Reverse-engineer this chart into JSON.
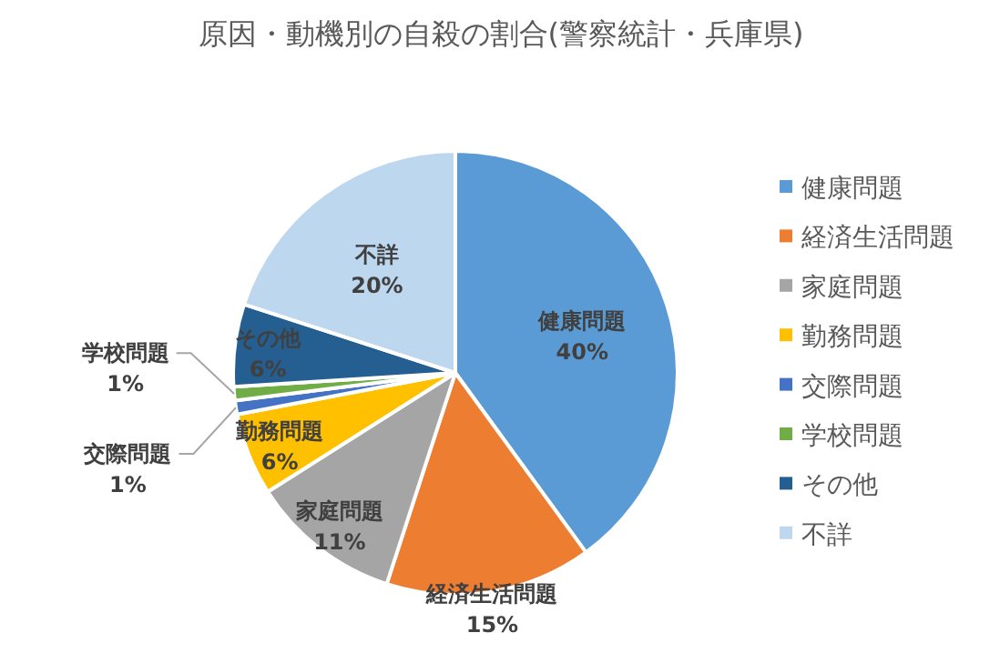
{
  "chart_data": {
    "type": "pie",
    "title": "原因・動機別の自殺の割合(警察統計・兵庫県)",
    "categories": [
      "健康問題",
      "経済生活問題",
      "家庭問題",
      "勤務問題",
      "交際問題",
      "学校問題",
      "その他",
      "不詳"
    ],
    "values": [
      40,
      15,
      11,
      6,
      1,
      1,
      6,
      20
    ],
    "value_labels": [
      "40%",
      "15%",
      "11%",
      "6%",
      "1%",
      "1%",
      "6%",
      "20%"
    ],
    "colors": [
      "#5b9bd5",
      "#ed7d31",
      "#a5a5a5",
      "#ffc000",
      "#4472c4",
      "#70ad47",
      "#255e91",
      "#bdd7ee"
    ],
    "legend": "right"
  }
}
